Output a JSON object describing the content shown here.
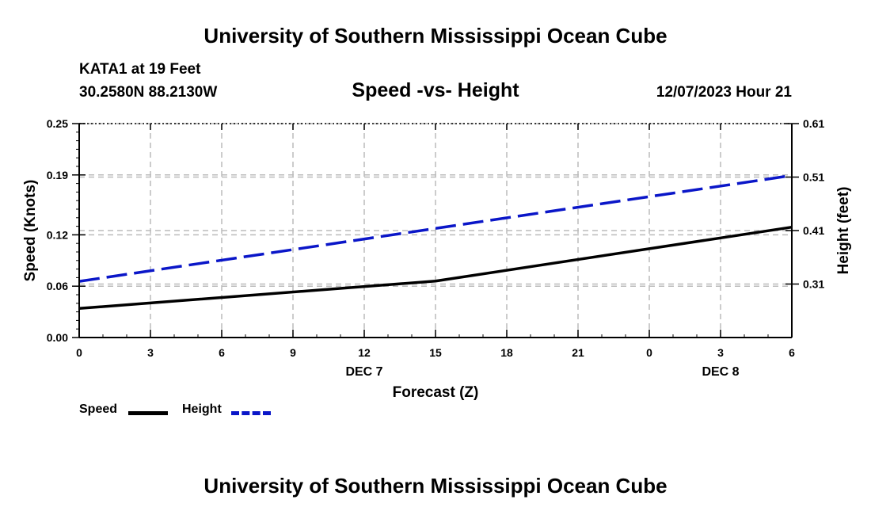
{
  "header": {
    "title": "University of Southern Mississippi Ocean Cube",
    "station": "KATA1 at 19 Feet",
    "coords": "30.2580N  88.2130W",
    "subtitle": "Speed -vs- Height",
    "datetime": "12/07/2023 Hour 21"
  },
  "footer": {
    "title": "University of Southern Mississippi Ocean Cube"
  },
  "legend": {
    "speed_label": "Speed",
    "height_label": "Height"
  },
  "colors": {
    "speed": "#000000",
    "height": "#0a16c8",
    "grid": "#bbbbbb"
  },
  "chart_data": {
    "type": "line",
    "title": "Speed -vs- Height",
    "xlabel": "Forecast (Z)",
    "ylabel": "Speed (Knots)",
    "y2label": "Height (feet)",
    "x": [
      0,
      3,
      6,
      9,
      12,
      15,
      18,
      21,
      24,
      27,
      30
    ],
    "x_tick_labels": [
      "0",
      "3",
      "6",
      "9",
      "12",
      "15",
      "18",
      "21",
      "0",
      "3",
      "6"
    ],
    "date_labels": [
      {
        "x": 12,
        "text": "DEC 7"
      },
      {
        "x": 27,
        "text": "DEC 8"
      }
    ],
    "ylim": [
      0,
      0.25
    ],
    "y_ticks": [
      0.0,
      0.06,
      0.12,
      0.19,
      0.25
    ],
    "y_tick_labels": [
      "0.00",
      "0.06",
      "0.12",
      "0.19",
      "0.25"
    ],
    "y2lim": [
      0.21,
      0.61
    ],
    "y2_ticks": [
      0.31,
      0.41,
      0.51,
      0.61
    ],
    "y2_tick_labels": [
      "0.31",
      "0.41",
      "0.51",
      "0.61"
    ],
    "grid": true,
    "legend_position": "bottom-left",
    "series": [
      {
        "name": "Speed",
        "axis": "left",
        "style": "solid",
        "points": [
          [
            0,
            0.034
          ],
          [
            15,
            0.066
          ],
          [
            30,
            0.129
          ]
        ]
      },
      {
        "name": "Height",
        "axis": "right",
        "style": "dashed",
        "points": [
          [
            0,
            0.315
          ],
          [
            30,
            0.513
          ]
        ]
      }
    ]
  }
}
